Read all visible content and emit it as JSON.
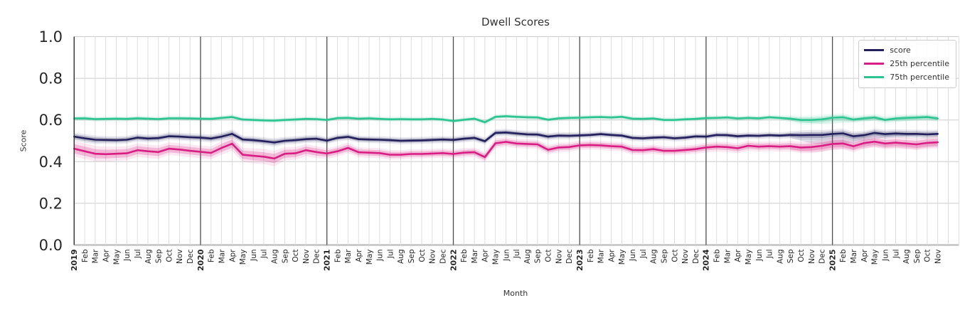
{
  "chart_data": {
    "type": "line",
    "title": "Dwell Scores",
    "xlabel": "Month",
    "ylabel": "Score",
    "ylim": [
      0.0,
      1.0
    ],
    "yticks": [
      0.0,
      0.2,
      0.4,
      0.6,
      0.8,
      1.0
    ],
    "grid": "on",
    "legend_position": "upper right",
    "x_tick_labels": [
      "2019",
      "Feb",
      "Mar",
      "Apr",
      "May",
      "Jun",
      "Jul",
      "Aug",
      "Sep",
      "Oct",
      "Nov",
      "Dec",
      "2020",
      "Feb",
      "Mar",
      "Apr",
      "May",
      "Jun",
      "Jul",
      "Aug",
      "Sep",
      "Oct",
      "Nov",
      "Dec",
      "2021",
      "Feb",
      "Mar",
      "Apr",
      "May",
      "Jun",
      "Jul",
      "Aug",
      "Sep",
      "Oct",
      "Nov",
      "Dec",
      "2022",
      "Feb",
      "Mar",
      "Apr",
      "May",
      "Jun",
      "Jul",
      "Aug",
      "Sep",
      "Oct",
      "Nov",
      "Dec",
      "2023",
      "Feb",
      "Mar",
      "Apr",
      "May",
      "Jun",
      "Jul",
      "Aug",
      "Sep",
      "Oct",
      "Nov",
      "Dec",
      "2024",
      "Feb",
      "Mar",
      "Apr",
      "May",
      "Jun",
      "Jul",
      "Aug",
      "Sep",
      "Oct",
      "Nov",
      "Dec",
      "2025",
      "Feb",
      "Mar",
      "Apr",
      "May",
      "Jun",
      "Jul",
      "Aug",
      "Sep",
      "Oct",
      "Nov"
    ],
    "series": [
      {
        "name": "score",
        "color": "#221f5b",
        "values": [
          0.52,
          0.512,
          0.505,
          0.504,
          0.503,
          0.505,
          0.515,
          0.511,
          0.513,
          0.522,
          0.52,
          0.517,
          0.515,
          0.511,
          0.52,
          0.533,
          0.506,
          0.503,
          0.498,
          0.492,
          0.5,
          0.503,
          0.508,
          0.51,
          0.501,
          0.514,
          0.519,
          0.508,
          0.506,
          0.505,
          0.503,
          0.5,
          0.501,
          0.502,
          0.504,
          0.506,
          0.504,
          0.51,
          0.514,
          0.498,
          0.538,
          0.54,
          0.535,
          0.531,
          0.53,
          0.52,
          0.525,
          0.524,
          0.526,
          0.528,
          0.532,
          0.528,
          0.525,
          0.514,
          0.512,
          0.515,
          0.517,
          0.512,
          0.515,
          0.521,
          0.52,
          0.528,
          0.527,
          0.522,
          0.525,
          0.524,
          0.527,
          0.525,
          0.528,
          0.527,
          0.528,
          0.528,
          0.533,
          0.536,
          0.522,
          0.527,
          0.538,
          0.532,
          0.535,
          0.533,
          0.533,
          0.531,
          0.533
        ],
        "band": [
          0.012,
          0.012,
          0.012,
          0.011,
          0.011,
          0.011,
          0.011,
          0.011,
          0.011,
          0.011,
          0.011,
          0.011,
          0.011,
          0.011,
          0.012,
          0.013,
          0.011,
          0.011,
          0.011,
          0.012,
          0.011,
          0.011,
          0.011,
          0.011,
          0.01,
          0.01,
          0.01,
          0.01,
          0.01,
          0.01,
          0.01,
          0.01,
          0.01,
          0.01,
          0.01,
          0.01,
          0.01,
          0.01,
          0.01,
          0.01,
          0.01,
          0.01,
          0.01,
          0.01,
          0.01,
          0.01,
          0.01,
          0.01,
          0.009,
          0.009,
          0.009,
          0.009,
          0.009,
          0.009,
          0.009,
          0.009,
          0.009,
          0.009,
          0.009,
          0.009,
          0.009,
          0.009,
          0.009,
          0.009,
          0.009,
          0.009,
          0.009,
          0.009,
          0.01,
          0.013,
          0.014,
          0.014,
          0.013,
          0.013,
          0.013,
          0.012,
          0.012,
          0.012,
          0.012,
          0.012,
          0.012,
          0.012,
          0.012
        ]
      },
      {
        "name": "25th percentile",
        "color": "#d81e82",
        "values": [
          0.462,
          0.45,
          0.438,
          0.436,
          0.438,
          0.44,
          0.455,
          0.45,
          0.446,
          0.462,
          0.458,
          0.452,
          0.447,
          0.442,
          0.466,
          0.486,
          0.433,
          0.428,
          0.424,
          0.415,
          0.438,
          0.44,
          0.455,
          0.446,
          0.439,
          0.45,
          0.466,
          0.445,
          0.443,
          0.441,
          0.433,
          0.433,
          0.437,
          0.437,
          0.439,
          0.441,
          0.437,
          0.443,
          0.445,
          0.422,
          0.488,
          0.495,
          0.487,
          0.485,
          0.483,
          0.457,
          0.468,
          0.47,
          0.478,
          0.48,
          0.478,
          0.474,
          0.472,
          0.456,
          0.455,
          0.46,
          0.452,
          0.452,
          0.456,
          0.46,
          0.468,
          0.472,
          0.47,
          0.464,
          0.476,
          0.472,
          0.474,
          0.472,
          0.474,
          0.468,
          0.47,
          0.476,
          0.485,
          0.487,
          0.474,
          0.489,
          0.496,
          0.487,
          0.491,
          0.487,
          0.483,
          0.49,
          0.493
        ],
        "band": [
          0.022,
          0.022,
          0.022,
          0.021,
          0.02,
          0.02,
          0.019,
          0.019,
          0.019,
          0.018,
          0.018,
          0.018,
          0.018,
          0.018,
          0.019,
          0.02,
          0.02,
          0.021,
          0.021,
          0.022,
          0.019,
          0.018,
          0.017,
          0.017,
          0.015,
          0.015,
          0.015,
          0.014,
          0.014,
          0.014,
          0.014,
          0.013,
          0.013,
          0.013,
          0.013,
          0.013,
          0.013,
          0.013,
          0.013,
          0.014,
          0.014,
          0.013,
          0.013,
          0.013,
          0.013,
          0.013,
          0.013,
          0.013,
          0.013,
          0.013,
          0.013,
          0.013,
          0.013,
          0.013,
          0.013,
          0.013,
          0.013,
          0.013,
          0.013,
          0.013,
          0.014,
          0.014,
          0.014,
          0.014,
          0.014,
          0.014,
          0.014,
          0.014,
          0.015,
          0.016,
          0.017,
          0.017,
          0.017,
          0.017,
          0.017,
          0.016,
          0.016,
          0.016,
          0.016,
          0.016,
          0.017,
          0.017,
          0.017
        ]
      },
      {
        "name": "75th percentile",
        "color": "#2ec492",
        "values": [
          0.607,
          0.608,
          0.604,
          0.605,
          0.606,
          0.605,
          0.608,
          0.606,
          0.604,
          0.608,
          0.608,
          0.607,
          0.606,
          0.605,
          0.61,
          0.614,
          0.602,
          0.6,
          0.598,
          0.597,
          0.6,
          0.602,
          0.605,
          0.604,
          0.6,
          0.609,
          0.61,
          0.606,
          0.608,
          0.605,
          0.603,
          0.604,
          0.603,
          0.603,
          0.605,
          0.602,
          0.595,
          0.601,
          0.606,
          0.589,
          0.615,
          0.618,
          0.615,
          0.613,
          0.612,
          0.601,
          0.608,
          0.61,
          0.611,
          0.613,
          0.614,
          0.612,
          0.615,
          0.606,
          0.605,
          0.607,
          0.6,
          0.6,
          0.603,
          0.605,
          0.609,
          0.61,
          0.612,
          0.607,
          0.61,
          0.608,
          0.613,
          0.61,
          0.606,
          0.6,
          0.6,
          0.603,
          0.611,
          0.613,
          0.602,
          0.608,
          0.612,
          0.6,
          0.607,
          0.61,
          0.612,
          0.614,
          0.607
        ],
        "band": [
          0.007,
          0.007,
          0.007,
          0.007,
          0.007,
          0.007,
          0.007,
          0.007,
          0.007,
          0.007,
          0.007,
          0.007,
          0.007,
          0.007,
          0.007,
          0.008,
          0.007,
          0.007,
          0.007,
          0.007,
          0.007,
          0.007,
          0.007,
          0.007,
          0.007,
          0.007,
          0.007,
          0.007,
          0.007,
          0.007,
          0.007,
          0.007,
          0.007,
          0.007,
          0.007,
          0.007,
          0.007,
          0.007,
          0.007,
          0.008,
          0.007,
          0.007,
          0.007,
          0.007,
          0.007,
          0.007,
          0.007,
          0.007,
          0.007,
          0.007,
          0.007,
          0.007,
          0.007,
          0.007,
          0.007,
          0.007,
          0.007,
          0.007,
          0.007,
          0.007,
          0.007,
          0.007,
          0.007,
          0.007,
          0.007,
          0.007,
          0.007,
          0.007,
          0.009,
          0.012,
          0.013,
          0.012,
          0.011,
          0.011,
          0.01,
          0.01,
          0.01,
          0.01,
          0.01,
          0.01,
          0.01,
          0.01,
          0.01
        ]
      }
    ],
    "extra_bands": [
      {
        "series_index": 0,
        "color": "#4a4884",
        "opacity": 0.16,
        "start": 68,
        "lower": [
          0.515,
          0.5,
          0.488,
          0.483,
          0.483,
          0.486,
          0.492,
          0.5,
          0.508,
          0.515,
          0.52,
          0.523,
          0.526,
          0.529,
          0.531
        ]
      },
      {
        "series_index": 2,
        "color": "#2ec492",
        "opacity": 0.14,
        "start": 68,
        "lower": [
          0.598,
          0.59,
          0.584,
          0.581,
          0.582,
          0.586,
          0.592,
          0.595,
          0.598,
          0.599,
          0.593,
          0.596,
          0.6,
          0.602,
          0.599
        ]
      },
      {
        "series_index": 1,
        "color": "#d81e82",
        "opacity": 0.14,
        "start": 68,
        "lower": [
          0.455,
          0.448,
          0.446,
          0.45,
          0.458,
          0.462,
          0.455,
          0.464,
          0.472,
          0.465,
          0.468,
          0.463,
          0.46,
          0.468,
          0.47
        ]
      }
    ]
  }
}
